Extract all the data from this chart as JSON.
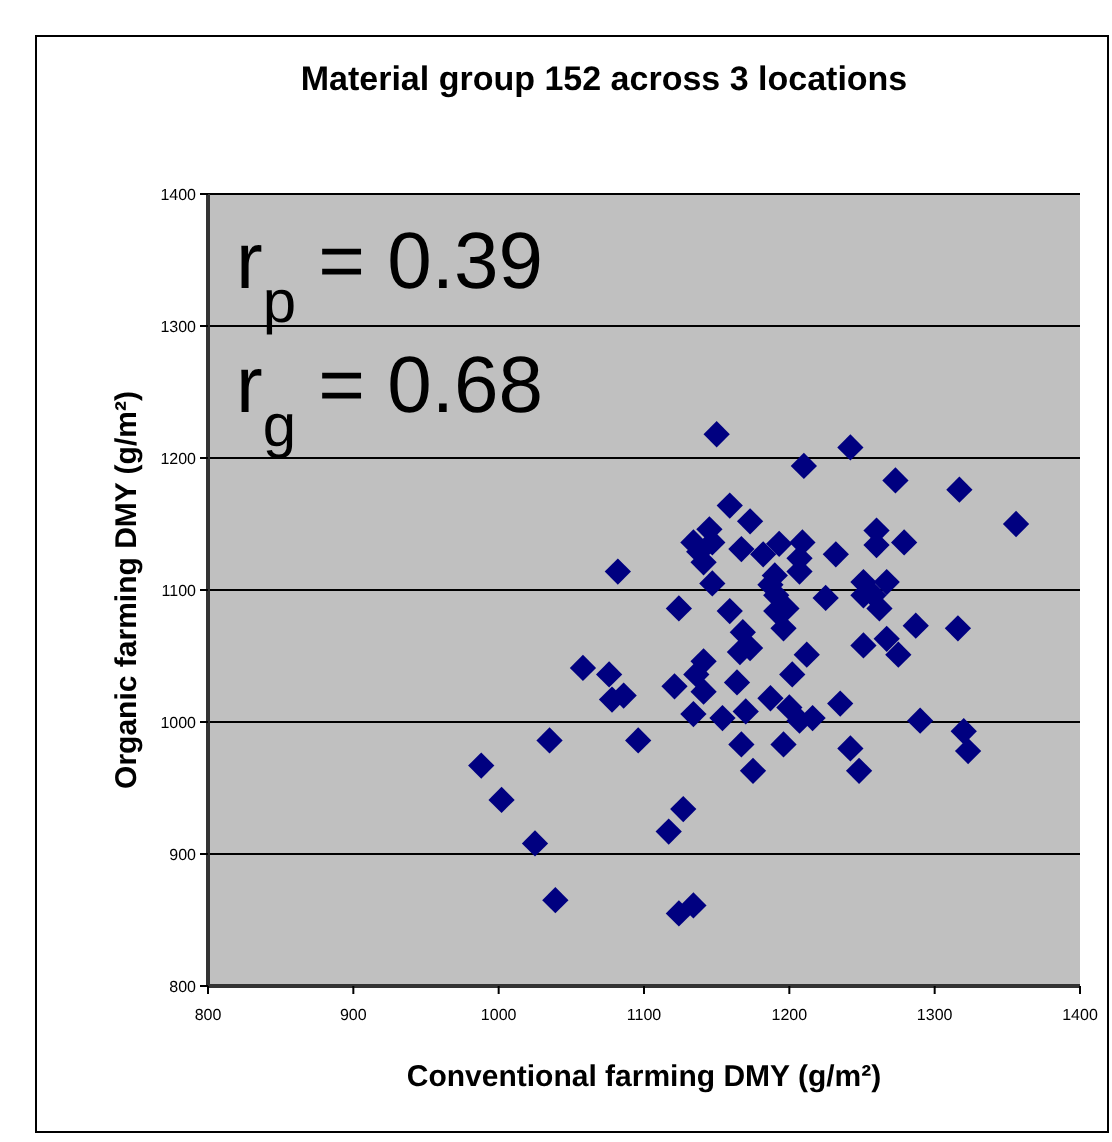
{
  "chart_data": {
    "type": "scatter",
    "title": "Material group 152 across 3 locations",
    "xlabel": "Conventional farming DMY (g/m²)",
    "ylabel": "Organic farming DMY (g/m²)",
    "annotations": [
      "r$_{p}$ = 0.39",
      "r$_{g}$ = 0.68"
    ],
    "xlim": [
      800,
      1400
    ],
    "xticks": [
      800,
      900,
      1000,
      1100,
      1200,
      1300,
      1400
    ],
    "ylim": [
      800,
      1400
    ],
    "yticks": [
      800,
      900,
      1000,
      1100,
      1200,
      1300,
      1400
    ],
    "grid": "y",
    "marker": "diamond",
    "series": [
      {
        "color": "#000080",
        "x": [
          988,
          1002,
          1025,
          1039,
          1035,
          1058,
          1076,
          1078,
          1086,
          1082,
          1096,
          1150,
          1210,
          1242,
          1273,
          1317,
          1356,
          1159,
          1173,
          1145,
          1134,
          1138,
          1147,
          1141,
          1147,
          1167,
          1182,
          1193,
          1209,
          1207,
          1207,
          1190,
          1187,
          1232,
          1225,
          1124,
          1159,
          1191,
          1191,
          1198,
          1196,
          1168,
          1173,
          1166,
          1251,
          1258,
          1267,
          1262,
          1251,
          1287,
          1316,
          1251,
          1267,
          1275,
          1260,
          1260,
          1279,
          1212,
          1202,
          1141,
          1136,
          1121,
          1141,
          1164,
          1134,
          1154,
          1170,
          1187,
          1200,
          1207,
          1216,
          1235,
          1167,
          1196,
          1175,
          1242,
          1248,
          1290,
          1320,
          1323,
          1127,
          1117,
          1124,
          1134
        ],
        "values": [
          967,
          941,
          908,
          865,
          986,
          1041,
          1036,
          1017,
          1020,
          1114,
          986,
          1218,
          1194,
          1208,
          1183,
          1176,
          1150,
          1164,
          1152,
          1146,
          1136,
          1129,
          1136,
          1121,
          1105,
          1131,
          1127,
          1135,
          1136,
          1124,
          1114,
          1111,
          1104,
          1127,
          1094,
          1086,
          1084,
          1096,
          1084,
          1086,
          1071,
          1068,
          1056,
          1053,
          1106,
          1096,
          1106,
          1086,
          1096,
          1073,
          1071,
          1058,
          1063,
          1051,
          1134,
          1145,
          1136,
          1051,
          1036,
          1046,
          1036,
          1027,
          1023,
          1030,
          1006,
          1003,
          1008,
          1018,
          1011,
          1001,
          1003,
          1014,
          983,
          983,
          963,
          980,
          963,
          1001,
          993,
          978,
          934,
          917,
          855,
          861
        ]
      }
    ]
  }
}
